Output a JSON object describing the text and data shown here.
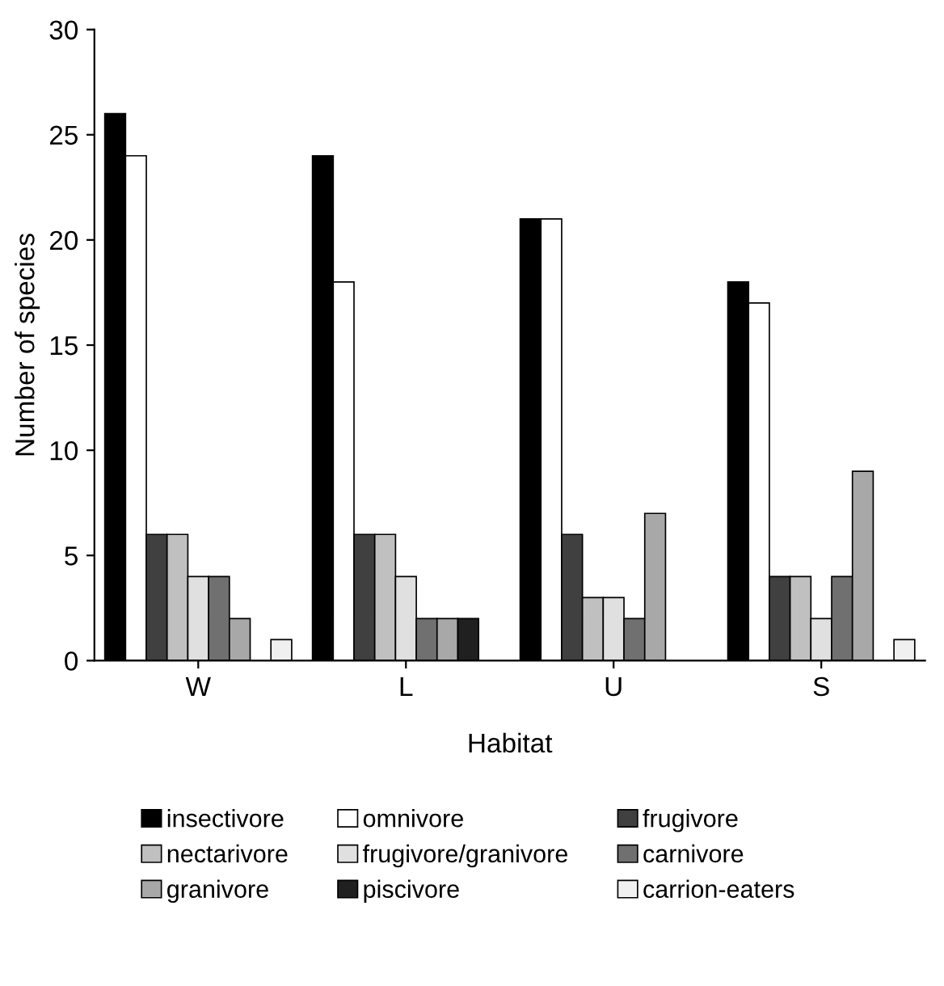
{
  "chart_data": {
    "type": "bar",
    "xlabel": "Habitat",
    "ylabel": "Number of species",
    "categories": [
      "W",
      "L",
      "U",
      "S"
    ],
    "series": [
      {
        "name": "insectivore",
        "color": "#000000",
        "values": [
          26,
          24,
          21,
          18
        ]
      },
      {
        "name": "omnivore",
        "color": "#ffffff",
        "values": [
          24,
          18,
          21,
          17
        ]
      },
      {
        "name": "frugivore",
        "color": "#404040",
        "values": [
          6,
          6,
          6,
          4
        ]
      },
      {
        "name": "nectarivore",
        "color": "#c0c0c0",
        "values": [
          6,
          6,
          3,
          4
        ]
      },
      {
        "name": "frugivore/granivore",
        "color": "#e0e0e0",
        "values": [
          4,
          4,
          3,
          2
        ]
      },
      {
        "name": "carnivore",
        "color": "#707070",
        "values": [
          4,
          2,
          2,
          4
        ]
      },
      {
        "name": "granivore",
        "color": "#a8a8a8",
        "values": [
          2,
          2,
          7,
          9
        ]
      },
      {
        "name": "piscivore",
        "color": "#202020",
        "values": [
          0,
          2,
          0,
          0
        ]
      },
      {
        "name": "carrion-eaters",
        "color": "#f0f0f0",
        "values": [
          1,
          0,
          0,
          1
        ]
      }
    ],
    "ylim": [
      0,
      30
    ],
    "yticks": [
      0,
      5,
      10,
      15,
      20,
      25,
      30
    ],
    "grid": false,
    "legend": "bottom"
  }
}
